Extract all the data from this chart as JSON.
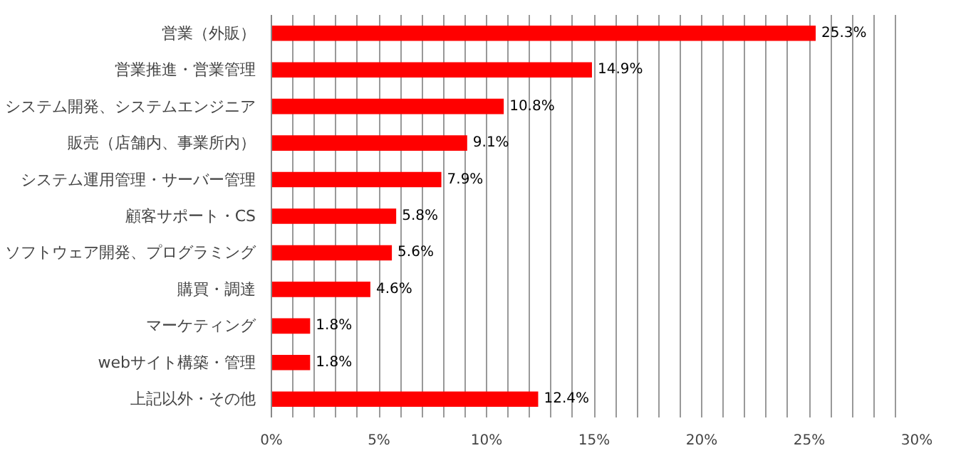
{
  "chart_data": {
    "type": "bar",
    "orientation": "horizontal",
    "categories": [
      "営業（外販）",
      "営業推進・営業管理",
      "システム開発、システムエンジニア",
      "販売（店舗内、事業所内）",
      "システム運用管理・サーバー管理",
      "顧客サポート・CS",
      "ソフトウェア開発、プログラミング",
      "購買・調達",
      "マーケティング",
      "webサイト構築・管理",
      "上記以外・その他"
    ],
    "values": [
      25.3,
      14.9,
      10.8,
      9.1,
      7.9,
      5.8,
      5.6,
      4.6,
      1.8,
      1.8,
      12.4
    ],
    "value_labels": [
      "25.3%",
      "14.9%",
      "10.8%",
      "9.1%",
      "7.9%",
      "5.8%",
      "5.6%",
      "4.6%",
      "1.8%",
      "1.8%",
      "12.4%"
    ],
    "color": "#ff0000",
    "xlim": [
      0,
      30
    ],
    "xticks": [
      {
        "value": 0,
        "label": "0%"
      },
      {
        "value": 1,
        "label": null
      },
      {
        "value": 2,
        "label": null
      },
      {
        "value": 3,
        "label": null
      },
      {
        "value": 4,
        "label": null
      },
      {
        "value": 5,
        "label": "5%"
      },
      {
        "value": 6,
        "label": null
      },
      {
        "value": 7,
        "label": null
      },
      {
        "value": 8,
        "label": null
      },
      {
        "value": 9,
        "label": null
      },
      {
        "value": 10,
        "label": "10%"
      },
      {
        "value": 11,
        "label": null
      },
      {
        "value": 12,
        "label": null
      },
      {
        "value": 13,
        "label": null
      },
      {
        "value": 14,
        "label": null
      },
      {
        "value": 15,
        "label": "15%"
      },
      {
        "value": 16,
        "label": null
      },
      {
        "value": 17,
        "label": null
      },
      {
        "value": 18,
        "label": null
      },
      {
        "value": 19,
        "label": null
      },
      {
        "value": 20,
        "label": "20%"
      },
      {
        "value": 21,
        "label": null
      },
      {
        "value": 22,
        "label": null
      },
      {
        "value": 23,
        "label": null
      },
      {
        "value": 24,
        "label": null
      },
      {
        "value": 25,
        "label": "25%"
      },
      {
        "value": 26,
        "label": null
      },
      {
        "value": 27,
        "label": null
      },
      {
        "value": 28,
        "label": null
      },
      {
        "value": 29,
        "label": null
      },
      {
        "value": 30,
        "label": "30%"
      }
    ],
    "grid": "x"
  }
}
